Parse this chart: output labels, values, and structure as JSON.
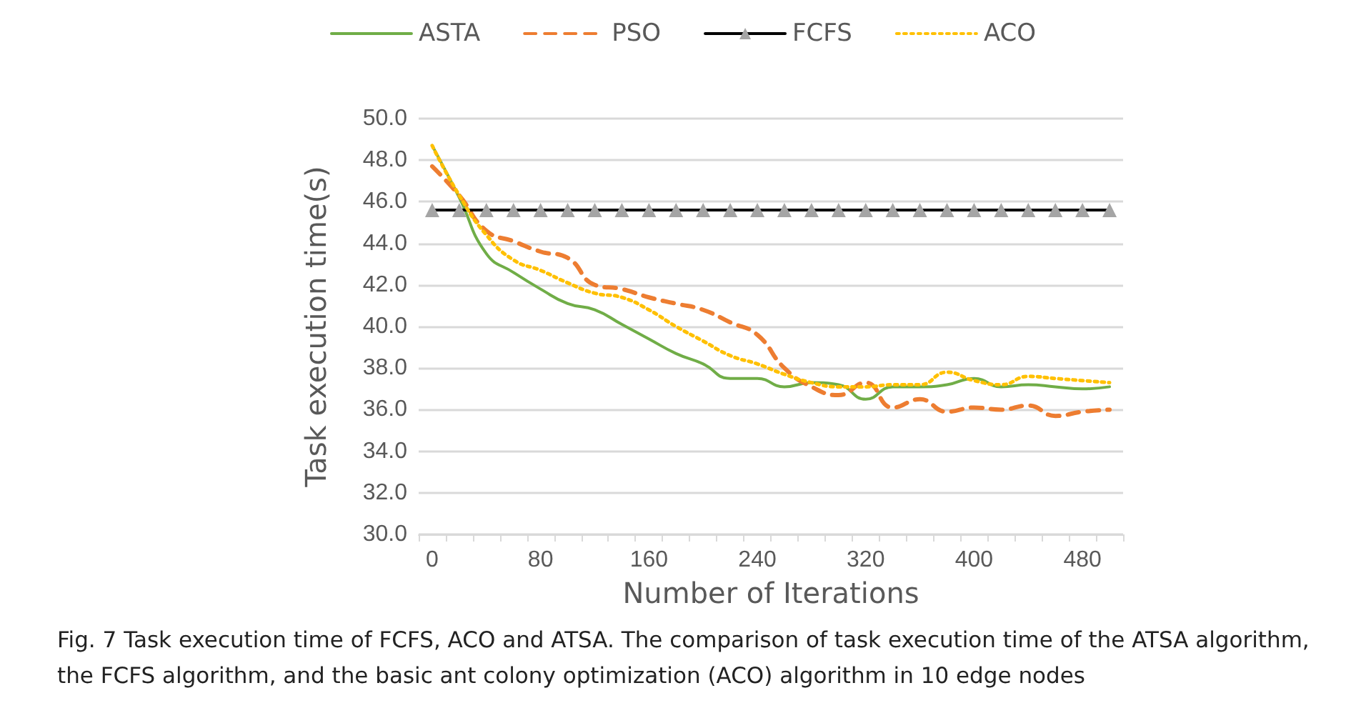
{
  "chart_data": {
    "type": "line",
    "xlabel": "Number of Iterations",
    "ylabel": "Task execution time(s)",
    "categories": [
      "0",
      null,
      null,
      null,
      "80",
      null,
      null,
      null,
      "160",
      null,
      null,
      null,
      "240",
      null,
      null,
      null,
      "320",
      null,
      null,
      null,
      "400",
      null,
      null,
      null,
      "480",
      null
    ],
    "series": [
      {
        "name": "ASTA",
        "color": "#70ad47",
        "line_style": "solid",
        "marker": "none",
        "values": [
          48.7,
          46.2,
          43.5,
          42.6,
          41.8,
          41.1,
          40.8,
          40.1,
          39.4,
          38.7,
          38.2,
          37.5,
          37.5,
          37.1,
          37.3,
          37.2,
          36.5,
          37.1,
          37.1,
          37.2,
          37.5,
          37.1,
          37.2,
          37.1,
          37.0,
          37.1
        ]
      },
      {
        "name": "PSO",
        "color": "#ed7d31",
        "line_style": "dashed",
        "marker": "none",
        "values": [
          47.7,
          46.3,
          44.6,
          44.1,
          43.6,
          43.3,
          42.0,
          41.8,
          41.4,
          41.1,
          40.8,
          40.2,
          39.6,
          38.0,
          37.1,
          36.7,
          37.3,
          36.1,
          36.5,
          35.9,
          36.1,
          36.0,
          36.2,
          35.7,
          35.9,
          36.0
        ]
      },
      {
        "name": "FCFS",
        "color": "#000000",
        "line_style": "solid",
        "marker": "triangle",
        "values": [
          45.6,
          45.6,
          45.6,
          45.6,
          45.6,
          45.6,
          45.6,
          45.6,
          45.6,
          45.6,
          45.6,
          45.6,
          45.6,
          45.6,
          45.6,
          45.6,
          45.6,
          45.6,
          45.6,
          45.6,
          45.6,
          45.6,
          45.6,
          45.6,
          45.6,
          45.6
        ]
      },
      {
        "name": "ACO",
        "color": "#ffc000",
        "line_style": "dotted",
        "marker": "none",
        "values": [
          48.7,
          46.3,
          44.4,
          43.2,
          42.7,
          42.1,
          41.6,
          41.4,
          40.8,
          40.0,
          39.3,
          38.6,
          38.2,
          37.7,
          37.3,
          37.1,
          37.1,
          37.2,
          37.2,
          37.8,
          37.4,
          37.2,
          37.6,
          37.5,
          37.4,
          37.3
        ]
      }
    ],
    "ylim": [
      30,
      50
    ],
    "yticks": [
      {
        "value": 30,
        "label": "30.0"
      },
      {
        "value": 32,
        "label": "32.0"
      },
      {
        "value": 34,
        "label": "34.0"
      },
      {
        "value": 36,
        "label": "36.0"
      },
      {
        "value": 38,
        "label": "38.0"
      },
      {
        "value": 40,
        "label": "40.0"
      },
      {
        "value": 42,
        "label": "42.0"
      },
      {
        "value": 44,
        "label": "44.0"
      },
      {
        "value": 46,
        "label": "46.0"
      },
      {
        "value": 48,
        "label": "48.0"
      },
      {
        "value": 50,
        "label": "50.0"
      }
    ],
    "grid": "y",
    "legend": "top",
    "annotations": [
      "Fig. 7 Task execution time of FCFS, ACO and ATSA. The comparison of task execution time of the ATSA algorithm, the FCFS algorithm, and the basic ant colony optimization (ACO) algorithm in 10 edge nodes"
    ]
  }
}
